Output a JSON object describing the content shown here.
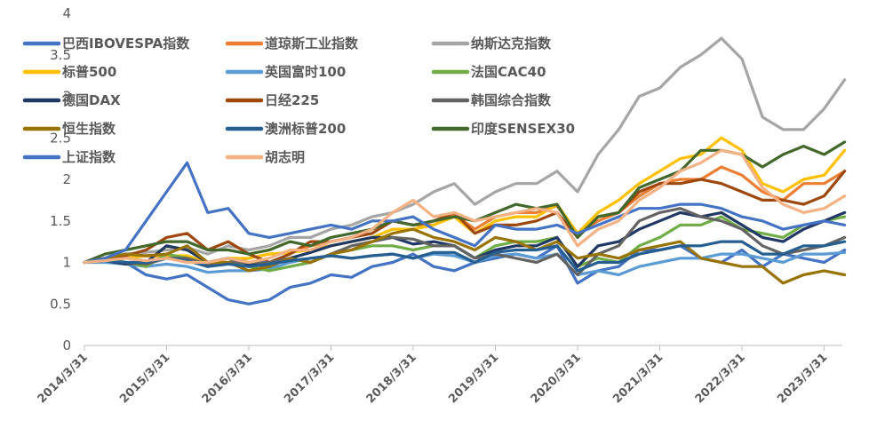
{
  "chart_data": {
    "type": "line",
    "title": "",
    "xlabel": "",
    "ylabel": "",
    "ylim": [
      0,
      4
    ],
    "yticks": [
      "0",
      "0.5",
      "1",
      "1.5",
      "2",
      "2.5",
      "3",
      "3.5",
      "4"
    ],
    "xticks": [
      "2014/3/31",
      "2015/3/31",
      "2016/3/31",
      "2017/3/31",
      "2018/3/31",
      "2019/3/31",
      "2020/3/31",
      "2021/3/31",
      "2022/3/31",
      "2023/3/31"
    ],
    "x": [
      "2014/3",
      "2014/6",
      "2014/9",
      "2014/12",
      "2015/3",
      "2015/6",
      "2015/9",
      "2015/12",
      "2016/3",
      "2016/6",
      "2016/9",
      "2016/12",
      "2017/3",
      "2017/6",
      "2017/9",
      "2017/12",
      "2018/3",
      "2018/6",
      "2018/9",
      "2018/12",
      "2019/3",
      "2019/6",
      "2019/9",
      "2019/12",
      "2020/3",
      "2020/6",
      "2020/9",
      "2020/12",
      "2021/3",
      "2021/6",
      "2021/9",
      "2021/12",
      "2022/3",
      "2022/6",
      "2022/9",
      "2022/12",
      "2023/3",
      "2023/6"
    ],
    "grid": false,
    "legend_position": "top-left",
    "series": [
      {
        "name": "巴西IBOVESPA指数",
        "color": "#4472C4",
        "values": [
          1.0,
          1.05,
          1.0,
          0.85,
          0.8,
          0.85,
          0.7,
          0.55,
          0.5,
          0.55,
          0.7,
          0.75,
          0.85,
          0.82,
          0.95,
          1.0,
          1.1,
          0.95,
          0.9,
          1.0,
          1.05,
          1.1,
          1.05,
          1.2,
          0.75,
          0.9,
          0.95,
          1.15,
          1.15,
          1.2,
          1.05,
          1.0,
          1.15,
          0.95,
          1.1,
          1.05,
          1.0,
          1.15
        ]
      },
      {
        "name": "道琼斯工业指数",
        "color": "#ED7D31",
        "values": [
          1.0,
          1.02,
          1.05,
          1.08,
          1.07,
          1.05,
          0.97,
          1.0,
          1.05,
          1.1,
          1.12,
          1.2,
          1.25,
          1.3,
          1.4,
          1.5,
          1.45,
          1.45,
          1.58,
          1.4,
          1.55,
          1.6,
          1.6,
          1.68,
          1.35,
          1.5,
          1.6,
          1.8,
          1.95,
          2.0,
          2.0,
          2.15,
          2.05,
          1.85,
          1.75,
          1.95,
          1.95,
          2.1
        ]
      },
      {
        "name": "纳斯达克指数",
        "color": "#A5A5A5",
        "values": [
          1.0,
          1.05,
          1.1,
          1.12,
          1.15,
          1.18,
          1.1,
          1.2,
          1.15,
          1.2,
          1.3,
          1.3,
          1.4,
          1.45,
          1.55,
          1.6,
          1.7,
          1.85,
          1.95,
          1.7,
          1.85,
          1.95,
          1.95,
          2.1,
          1.85,
          2.3,
          2.6,
          3.0,
          3.1,
          3.35,
          3.5,
          3.7,
          3.45,
          2.75,
          2.6,
          2.6,
          2.85,
          3.2
        ]
      },
      {
        "name": "标普500",
        "color": "#FFC000",
        "values": [
          1.0,
          1.03,
          1.05,
          1.08,
          1.08,
          1.08,
          1.0,
          1.05,
          1.05,
          1.1,
          1.12,
          1.15,
          1.2,
          1.25,
          1.3,
          1.4,
          1.4,
          1.45,
          1.55,
          1.35,
          1.5,
          1.55,
          1.55,
          1.7,
          1.35,
          1.6,
          1.75,
          1.95,
          2.1,
          2.25,
          2.3,
          2.5,
          2.35,
          1.95,
          1.85,
          2.0,
          2.05,
          2.35
        ]
      },
      {
        "name": "英国富时100",
        "color": "#5B9BD5",
        "values": [
          1.0,
          1.0,
          0.98,
          0.95,
          0.98,
          0.95,
          0.88,
          0.9,
          0.9,
          0.92,
          1.0,
          1.05,
          1.08,
          1.05,
          1.08,
          1.1,
          1.05,
          1.1,
          1.08,
          1.0,
          1.08,
          1.1,
          1.05,
          1.1,
          0.85,
          0.9,
          0.85,
          0.95,
          1.0,
          1.05,
          1.05,
          1.1,
          1.1,
          1.05,
          1.0,
          1.1,
          1.1,
          1.12
        ]
      },
      {
        "name": "法国CAC40",
        "color": "#70AD47",
        "values": [
          1.0,
          1.05,
          1.0,
          0.95,
          1.1,
          1.05,
          0.95,
          1.0,
          0.95,
          0.9,
          0.95,
          1.0,
          1.1,
          1.15,
          1.2,
          1.2,
          1.15,
          1.2,
          1.2,
          1.05,
          1.2,
          1.25,
          1.25,
          1.3,
          0.95,
          1.05,
          1.0,
          1.2,
          1.3,
          1.45,
          1.45,
          1.55,
          1.4,
          1.35,
          1.3,
          1.45,
          1.5,
          1.55
        ]
      },
      {
        "name": "德国DAX",
        "color": "#203864",
        "values": [
          1.0,
          1.02,
          0.98,
          1.0,
          1.2,
          1.15,
          1.0,
          1.05,
          0.98,
          0.95,
          1.05,
          1.12,
          1.2,
          1.25,
          1.3,
          1.3,
          1.22,
          1.25,
          1.2,
          1.05,
          1.15,
          1.2,
          1.2,
          1.3,
          0.95,
          1.2,
          1.25,
          1.4,
          1.5,
          1.6,
          1.55,
          1.6,
          1.45,
          1.3,
          1.25,
          1.4,
          1.5,
          1.6
        ]
      },
      {
        "name": "日经225",
        "color": "#9E480E",
        "values": [
          1.0,
          1.05,
          1.08,
          1.15,
          1.3,
          1.35,
          1.15,
          1.25,
          1.1,
          1.0,
          1.1,
          1.25,
          1.25,
          1.3,
          1.35,
          1.5,
          1.45,
          1.5,
          1.6,
          1.35,
          1.45,
          1.45,
          1.5,
          1.6,
          1.3,
          1.55,
          1.6,
          1.85,
          1.95,
          1.95,
          2.0,
          1.95,
          1.85,
          1.75,
          1.75,
          1.7,
          1.8,
          2.1
        ]
      },
      {
        "name": "韩国综合指数",
        "color": "#636363",
        "values": [
          1.0,
          1.02,
          1.0,
          0.98,
          1.05,
          1.05,
          0.98,
          1.0,
          1.0,
          1.0,
          1.05,
          1.0,
          1.1,
          1.2,
          1.25,
          1.3,
          1.28,
          1.2,
          1.2,
          1.05,
          1.1,
          1.05,
          1.0,
          1.1,
          0.85,
          1.1,
          1.2,
          1.5,
          1.6,
          1.65,
          1.55,
          1.5,
          1.4,
          1.2,
          1.1,
          1.15,
          1.2,
          1.3
        ]
      },
      {
        "name": "恒生指数",
        "color": "#997300",
        "values": [
          1.0,
          1.05,
          1.1,
          1.08,
          1.1,
          1.2,
          1.0,
          1.0,
          0.9,
          0.95,
          1.05,
          1.0,
          1.1,
          1.15,
          1.25,
          1.35,
          1.4,
          1.3,
          1.25,
          1.15,
          1.3,
          1.25,
          1.15,
          1.25,
          1.05,
          1.1,
          1.05,
          1.15,
          1.2,
          1.25,
          1.05,
          1.0,
          0.95,
          0.95,
          0.75,
          0.85,
          0.9,
          0.85
        ]
      },
      {
        "name": "澳洲标普200",
        "color": "#255E91",
        "values": [
          1.0,
          1.02,
          1.0,
          1.0,
          1.05,
          1.02,
          0.95,
          0.98,
          0.95,
          0.98,
          1.02,
          1.05,
          1.08,
          1.05,
          1.08,
          1.1,
          1.05,
          1.12,
          1.12,
          1.0,
          1.12,
          1.15,
          1.15,
          1.2,
          0.9,
          1.0,
          1.0,
          1.1,
          1.15,
          1.2,
          1.2,
          1.25,
          1.25,
          1.1,
          1.1,
          1.2,
          1.2,
          1.25
        ]
      },
      {
        "name": "印度SENSEX30",
        "color": "#43682B",
        "values": [
          1.0,
          1.1,
          1.15,
          1.2,
          1.25,
          1.25,
          1.15,
          1.15,
          1.1,
          1.15,
          1.25,
          1.2,
          1.3,
          1.35,
          1.4,
          1.5,
          1.45,
          1.5,
          1.55,
          1.5,
          1.6,
          1.7,
          1.65,
          1.7,
          1.3,
          1.55,
          1.6,
          1.9,
          2.0,
          2.1,
          2.35,
          2.35,
          2.3,
          2.15,
          2.3,
          2.4,
          2.3,
          2.45
        ]
      },
      {
        "name": "上证指数",
        "color": "#4472C4",
        "values": [
          1.0,
          1.05,
          1.15,
          1.5,
          1.85,
          2.2,
          1.6,
          1.65,
          1.35,
          1.3,
          1.35,
          1.4,
          1.45,
          1.4,
          1.5,
          1.5,
          1.55,
          1.4,
          1.3,
          1.2,
          1.45,
          1.4,
          1.4,
          1.45,
          1.35,
          1.45,
          1.55,
          1.65,
          1.65,
          1.7,
          1.7,
          1.65,
          1.55,
          1.5,
          1.4,
          1.45,
          1.5,
          1.45
        ]
      },
      {
        "name": "胡志明",
        "color": "#F4B183",
        "values": [
          1.0,
          1.02,
          1.05,
          1.02,
          1.05,
          1.0,
          1.0,
          1.05,
          1.0,
          1.05,
          1.15,
          1.15,
          1.25,
          1.3,
          1.4,
          1.6,
          1.75,
          1.55,
          1.6,
          1.5,
          1.55,
          1.6,
          1.65,
          1.6,
          1.2,
          1.4,
          1.5,
          1.75,
          1.9,
          2.1,
          2.2,
          2.35,
          2.3,
          1.9,
          1.7,
          1.6,
          1.65,
          1.8
        ]
      }
    ]
  }
}
